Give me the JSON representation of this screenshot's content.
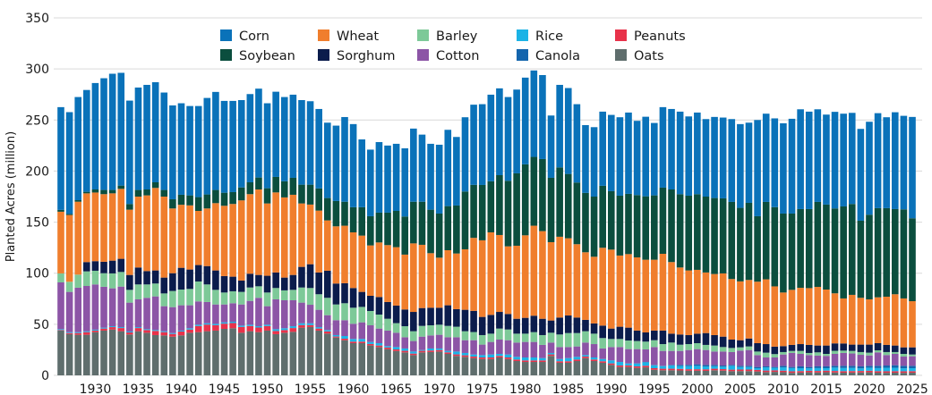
{
  "chart_data": {
    "type": "bar",
    "stacked": true,
    "title": "",
    "xlabel": "",
    "ylabel": "Planted Acres (million)",
    "ylim": [
      0,
      350
    ],
    "yticks": [
      0,
      50,
      100,
      150,
      200,
      250,
      300,
      350
    ],
    "xticks": [
      1930,
      1935,
      1940,
      1945,
      1950,
      1955,
      1960,
      1965,
      1970,
      1975,
      1980,
      1985,
      1990,
      1995,
      2000,
      2005,
      2010,
      2015,
      2020,
      2025
    ],
    "x_start": 1926,
    "x_end": 2025,
    "grid": "horizontal",
    "legend_position": "top-center",
    "legend_order": [
      "Corn",
      "Wheat",
      "Barley",
      "Rice",
      "Peanuts",
      "Soybean",
      "Sorghum",
      "Cotton",
      "Canola",
      "Oats"
    ],
    "series": [
      {
        "name": "Oats",
        "color": "#5f6e6d",
        "values": [
          43.8,
          40.3,
          39.7,
          39.7,
          42.3,
          43.8,
          44.9,
          43.2,
          40,
          43.2,
          41.7,
          39.4,
          39.1,
          37.9,
          39.1,
          41.7,
          42.3,
          43.2,
          43.8,
          45.5,
          46.1,
          41.7,
          43.2,
          42.3,
          43.8,
          40.3,
          41.7,
          42.6,
          46.7,
          47.3,
          43.8,
          40.9,
          37,
          34.4,
          31.5,
          31.5,
          29.2,
          27.7,
          25.7,
          23.9,
          22.5,
          19.8,
          22.5,
          22.8,
          23.3,
          21,
          19,
          18.1,
          16.9,
          16,
          16,
          17.5,
          16,
          14,
          13.1,
          13.1,
          13.1,
          19,
          12.3,
          12.3,
          14,
          16.9,
          14,
          12.3,
          10.2,
          8.2,
          8.2,
          7.3,
          7.8,
          5.5,
          5,
          5,
          4.8,
          4.5,
          4.5,
          4.4,
          5,
          4.6,
          4.1,
          4.2,
          4.2,
          3.8,
          3.2,
          3.4,
          3.1,
          2.5,
          2.7,
          3,
          2.8,
          3.1,
          2.8,
          2.6,
          2.7,
          2.8,
          3,
          2.6,
          2.5,
          2.6,
          2.5,
          2.6
        ]
      },
      {
        "name": "Peanuts",
        "color": "#e8324a",
        "values": [
          0.5,
          1.1,
          1.7,
          2.6,
          1.5,
          2,
          2.3,
          3.1,
          2,
          3.1,
          2.6,
          4.1,
          3.2,
          2.6,
          3.8,
          3.1,
          6,
          6.5,
          5.3,
          5.1,
          5.1,
          5.7,
          5.1,
          4.5,
          4.5,
          3.1,
          2.6,
          3.7,
          2.5,
          1.9,
          2,
          2.1,
          1,
          1.5,
          1.5,
          1.5,
          1.5,
          1.5,
          1.5,
          1.5,
          1.5,
          1.5,
          1.5,
          1.5,
          1.5,
          1.5,
          1.5,
          1.5,
          1.5,
          1.5,
          1.5,
          1.5,
          1.5,
          1.5,
          1.5,
          1.5,
          1.5,
          1.5,
          1.5,
          1.5,
          1.5,
          1.5,
          1.5,
          1.5,
          1.5,
          1.5,
          1.5,
          1.5,
          1.6,
          1.5,
          1.5,
          1.5,
          1.5,
          1.5,
          1.5,
          1.5,
          1.5,
          1.5,
          1.5,
          1.5,
          1.5,
          1.5,
          1.5,
          1.5,
          1.5,
          1.5,
          1.5,
          1.5,
          1.5,
          1.5,
          1.5,
          1.5,
          1.5,
          1.5,
          1.5,
          1.5,
          1.5,
          1.5,
          1.5,
          1.5
        ]
      },
      {
        "name": "Rice",
        "color": "#1bb3e6",
        "values": [
          0.9,
          0.9,
          0.9,
          0.9,
          0.9,
          0.9,
          0.9,
          0.9,
          0.9,
          0.9,
          0.9,
          0.9,
          0.9,
          0.9,
          0.9,
          1.3,
          1.3,
          1.3,
          1.3,
          1.3,
          1.3,
          1.3,
          1.3,
          1.3,
          1.3,
          1.8,
          1.8,
          1.8,
          1.8,
          1.8,
          1.4,
          1.4,
          1.4,
          2.6,
          2.6,
          2.6,
          2,
          2.3,
          1.4,
          2.3,
          2.3,
          2,
          0.8,
          2,
          1.5,
          1.4,
          2.8,
          2.3,
          2,
          2.3,
          2.9,
          2,
          2.9,
          2.6,
          2.9,
          2.9,
          2.3,
          1.4,
          2.2,
          3.1,
          2.6,
          1.4,
          2,
          2.2,
          2.9,
          3.4,
          2,
          2.9,
          3.4,
          2.8,
          2.5,
          3.2,
          2.9,
          3.1,
          3.3,
          2.8,
          2.4,
          2.4,
          3.7,
          2.4,
          2.5,
          1.7,
          3.1,
          2.5,
          3.2,
          3.1,
          2.8,
          2.4,
          2.8,
          2.4,
          3.3,
          3.1,
          3.1,
          2.5,
          3,
          3,
          3.4,
          3.3,
          2.9,
          2.9
        ]
      },
      {
        "name": "Canola",
        "color": "#1465ad",
        "values": [
          0,
          0,
          0,
          0,
          0,
          0,
          0,
          0,
          0,
          0,
          0,
          0,
          0,
          0,
          0,
          0,
          0,
          0,
          0,
          0,
          0,
          0,
          0,
          0,
          0,
          0,
          0,
          0,
          0,
          0,
          0,
          0,
          0,
          0,
          0,
          0,
          0,
          0,
          0,
          0,
          0,
          0,
          0,
          0,
          0,
          0,
          0,
          0,
          0,
          0,
          0,
          0,
          0,
          0,
          0,
          0,
          0,
          0,
          0,
          0,
          0,
          0,
          0,
          0,
          0,
          0,
          0,
          0,
          0.3,
          0.4,
          0.3,
          0.5,
          1,
          1.1,
          1.5,
          1.5,
          1.3,
          1.1,
          0.9,
          1.2,
          1.1,
          1.2,
          1,
          0.8,
          1.5,
          1.1,
          1.8,
          1.3,
          1.7,
          1.8,
          1.7,
          2.1,
          2,
          2,
          1.8,
          2.2,
          2.2,
          2.5,
          2.4,
          2.3
        ]
      },
      {
        "name": "Cotton",
        "color": "#8c55a6",
        "values": [
          45.8,
          39.4,
          43.5,
          44.3,
          44.3,
          40,
          37.1,
          39.7,
          28.3,
          27.2,
          30.7,
          32.9,
          24.5,
          25.4,
          24.8,
          22.5,
          22.8,
          20.8,
          19,
          17.5,
          18.1,
          20.7,
          23.3,
          27.8,
          18.1,
          29.2,
          27.4,
          25.4,
          20.2,
          18.1,
          17,
          14.5,
          14.6,
          15.5,
          14.9,
          16.3,
          16.3,
          14.3,
          15.2,
          14,
          11,
          10.3,
          13.1,
          12.8,
          13.4,
          13.4,
          14,
          12.5,
          14,
          10.3,
          12.3,
          14,
          14,
          14,
          15.2,
          15.2,
          12.9,
          10.2,
          11.7,
          10.8,
          10.2,
          12.3,
          13.1,
          10.3,
          13.1,
          14.6,
          14,
          14,
          12.3,
          17.5,
          14.6,
          13.7,
          13.7,
          14.6,
          14.9,
          14.6,
          13.1,
          13.7,
          12.6,
          14.9,
          15.5,
          11.6,
          8.7,
          9.3,
          11.1,
          13.7,
          12.2,
          11.6,
          10.5,
          10.2,
          11.7,
          12.6,
          12.1,
          11.3,
          10.2,
          13.2,
          10.3,
          11.1,
          9.1,
          9.4
        ]
      },
      {
        "name": "Barley",
        "color": "#7dc998",
        "values": [
          8.8,
          9.9,
          12.8,
          14.3,
          13.4,
          13.3,
          14.6,
          14.3,
          12.5,
          14.6,
          13.1,
          12.6,
          12.5,
          15.8,
          15.4,
          16,
          19.5,
          17.2,
          14.3,
          11.7,
          11.7,
          12.3,
          13.1,
          11.3,
          13.4,
          11.1,
          9.7,
          10.2,
          14.8,
          16.4,
          15.2,
          17,
          15.4,
          16.6,
          15.7,
          15.1,
          14,
          13.7,
          11.6,
          9.4,
          10.8,
          9.6,
          10.5,
          9.9,
          9.9,
          11.1,
          10.3,
          8.8,
          8,
          9.3,
          8.1,
          10.8,
          10.5,
          8.7,
          8.1,
          9.6,
          9.6,
          9.6,
          12.3,
          13.7,
          13.1,
          11.1,
          10.2,
          10.2,
          7.9,
          7.9,
          8.4,
          7.9,
          7.6,
          6.7,
          6.7,
          8.2,
          6.1,
          5.8,
          5.8,
          5,
          5.9,
          4.4,
          4,
          3.2,
          3.5,
          3.5,
          4.7,
          3.3,
          2.4,
          2,
          2.9,
          2.1,
          3.2,
          2,
          3,
          2.3,
          2.5,
          2.7,
          2.7,
          2,
          2.9,
          1.8,
          2.6,
          1.7
        ]
      },
      {
        "name": "Sorghum",
        "color": "#0b1c4c",
        "values": [
          0,
          0,
          0,
          9.1,
          9.4,
          11.2,
          12.5,
          12.9,
          14.6,
          16.6,
          13.1,
          12.8,
          15.5,
          17.4,
          21.3,
          19,
          16.1,
          18,
          19,
          16.1,
          14.3,
          11.1,
          13.5,
          11.1,
          16.4,
          15.2,
          12.5,
          14.6,
          20.2,
          23.3,
          21.3,
          26.5,
          20.5,
          19.6,
          19.3,
          14.7,
          14.9,
          17.2,
          16.4,
          17.2,
          16.4,
          18.9,
          17.5,
          17.2,
          16.6,
          20.2,
          17.2,
          21,
          20.7,
          17.8,
          18.4,
          16.3,
          15.2,
          14.6,
          15.5,
          16.1,
          16,
          12,
          16.6,
          17.2,
          15.2,
          11.1,
          10,
          12.2,
          10.2,
          12,
          12.6,
          10.2,
          9,
          9.4,
          13.2,
          8.7,
          10,
          8.8,
          9.3,
          11.6,
          10.2,
          10.2,
          8.2,
          7,
          7.8,
          8.2,
          8.4,
          7.3,
          5.8,
          5.9,
          6.7,
          7.9,
          6.7,
          8.2,
          7.3,
          7,
          6.2,
          7.3,
          7.9,
          7,
          7,
          6.4,
          6.4,
          7
        ]
      },
      {
        "name": "Wheat",
        "color": "#f07e2d",
        "values": [
          60.4,
          65.4,
          71.4,
          67.3,
          67.2,
          66.2,
          65.9,
          68.5,
          63.9,
          69.4,
          74.1,
          80.8,
          79.3,
          63.4,
          61.7,
          62.8,
          53,
          56.4,
          65.9,
          68.8,
          71.2,
          78.5,
          77.9,
          83.7,
          70.8,
          78.4,
          78.5,
          78.5,
          62.1,
          58.4,
          60.6,
          49.3,
          56,
          56.3,
          54.5,
          55.1,
          49.3,
          53.4,
          55.7,
          57.2,
          53.7,
          67.1,
          61.9,
          53.4,
          49,
          53.9,
          54.5,
          59.2,
          71.5,
          75,
          80.8,
          75.3,
          66.2,
          71.5,
          80.8,
          88.1,
          85.8,
          76.7,
          79.1,
          75.6,
          71.8,
          66.2,
          65.3,
          76.2,
          77.3,
          69.7,
          72,
          71.7,
          71.2,
          69.4,
          75.2,
          70.1,
          65.6,
          63.3,
          62.5,
          59.3,
          59.8,
          61.9,
          59.3,
          57.6,
          57.3,
          60.2,
          63.4,
          59,
          52.5,
          53.9,
          55.1,
          55.6,
          57.4,
          54.8,
          49,
          44.1,
          48.7,
          45.8,
          44.3,
          44.9,
          47.2,
          50.2,
          47.9,
          45.2
        ]
      },
      {
        "name": "Soybean",
        "color": "#0b4e3e",
        "values": [
          1.8,
          1,
          1.5,
          1.5,
          3,
          4.1,
          3.3,
          3.2,
          5.6,
          6.5,
          5.8,
          5.5,
          6.5,
          9,
          9.8,
          9.8,
          13.5,
          13.7,
          12.9,
          12.8,
          11.6,
          12.7,
          11.6,
          11.7,
          14.9,
          15.2,
          15.8,
          16.6,
          18.4,
          19.5,
          21.7,
          21.9,
          24.8,
          23.5,
          24.6,
          27.8,
          28.6,
          29.2,
          31.8,
          35.5,
          37.3,
          40.8,
          42.2,
          42.6,
          43.2,
          43.2,
          47,
          56.6,
          51.9,
          54.2,
          50,
          58.6,
          64.2,
          70.9,
          69.5,
          67.4,
          70.6,
          63,
          67.9,
          63,
          60.4,
          58.1,
          58.9,
          60.7,
          57.2,
          58.6,
          59,
          61,
          62.1,
          63,
          64.8,
          71.1,
          71.8,
          73.2,
          74.1,
          74.3,
          74.4,
          73.5,
          75.5,
          72,
          75.5,
          64.1,
          75.8,
          77.6,
          77.3,
          74.7,
          77.1,
          77.4,
          83.2,
          83.2,
          83.1,
          90.1,
          89,
          75.5,
          82.9,
          87.3,
          86.7,
          83.4,
          87.2,
          81.2
        ]
      },
      {
        "name": "Corn",
        "color": "#0a72b9",
        "values": [
          100.6,
          99.7,
          101,
          99.7,
          104.2,
          109.4,
          113.8,
          110.4,
          101.2,
          100.3,
          102.4,
          98,
          95.4,
          91.9,
          89.6,
          87.5,
          89.2,
          94.5,
          96,
          89.9,
          89.3,
          85.5,
          86.4,
          87,
          83.2,
          83.4,
          82.5,
          81.4,
          82.8,
          81.7,
          77.8,
          73.8,
          73.8,
          82.9,
          81.4,
          66.4,
          65.2,
          69.1,
          65.7,
          65.7,
          66.8,
          71.6,
          65.7,
          64.5,
          67.4,
          74.7,
          67.1,
          72.7,
          78.5,
          79.1,
          84.8,
          85,
          82,
          82,
          84.9,
          84.6,
          82.2,
          61,
          80.8,
          84.1,
          76.7,
          66.4,
          68,
          72.6,
          74.7,
          76.8,
          79.6,
          72.7,
          77.9,
          70.9,
          78.8,
          78.8,
          80.8,
          77.6,
          79.9,
          75.9,
          79.4,
          79.1,
          81.1,
          82,
          78.5,
          94.2,
          86.4,
          86.9,
          88.4,
          92.8,
          97.7,
          95.4,
          90.7,
          88.1,
          94.6,
          90.8,
          89.2,
          89.9,
          91,
          93,
          89,
          94.8,
          91.6,
          99.2
        ]
      }
    ]
  }
}
